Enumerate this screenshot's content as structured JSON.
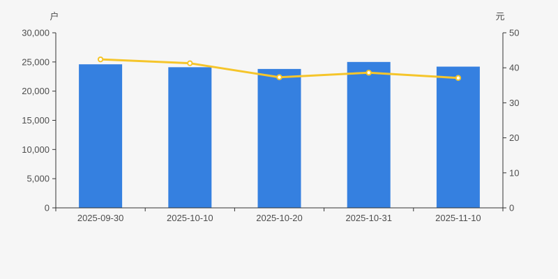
{
  "page": {
    "background_color": "#f6f6f6"
  },
  "chart_data": {
    "type": "bar",
    "subtype": "dual-axis-bar-line",
    "title": "",
    "legend": "none",
    "grid": "off",
    "categories": [
      "2025-09-30",
      "2025-10-10",
      "2025-10-20",
      "2025-10-31",
      "2025-11-10"
    ],
    "series": [
      {
        "name": "bar-series",
        "type": "bar",
        "axis": "left",
        "color": "#3580e0",
        "values": [
          24600,
          24100,
          23800,
          25000,
          24200
        ]
      },
      {
        "name": "line-series",
        "type": "line",
        "axis": "right",
        "color": "#f5c52b",
        "marker": "hollow-circle",
        "marker_fill": "#ffffff",
        "values": [
          42.4,
          41.3,
          37.3,
          38.6,
          37.1
        ]
      }
    ],
    "left_axis": {
      "name": "户",
      "min": 0,
      "max": 30000,
      "interval": 5000,
      "tick_labels": [
        "0",
        "5,000",
        "10,000",
        "15,000",
        "20,000",
        "25,000",
        "30,000"
      ]
    },
    "right_axis": {
      "name": "元",
      "min": 0,
      "max": 50,
      "interval": 10,
      "tick_labels": [
        "0",
        "10",
        "20",
        "30",
        "40",
        "50"
      ]
    },
    "axis_line_color": "#333333",
    "label_color": "#4d4d4d"
  }
}
